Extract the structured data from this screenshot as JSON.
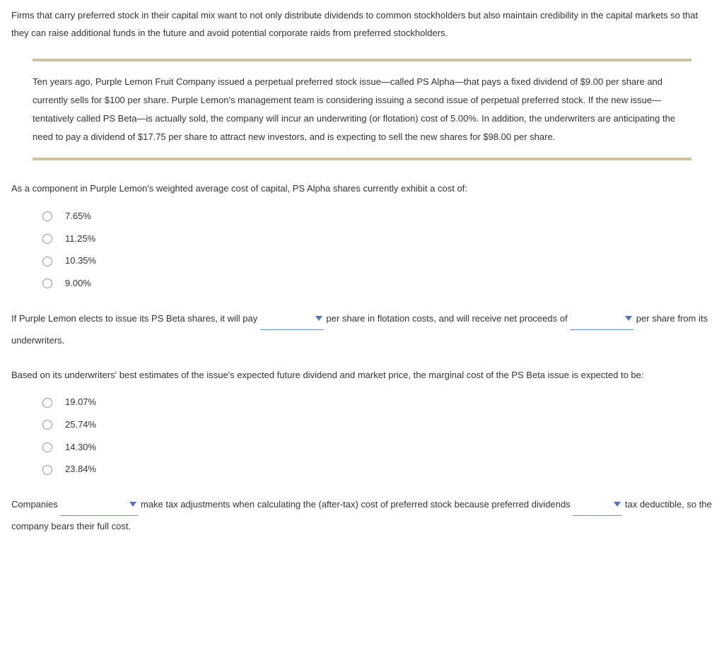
{
  "intro": "Firms that carry preferred stock in their capital mix want to not only distribute dividends to common stockholders but also maintain credibility in the capital markets so that they can raise additional funds in the future and avoid potential corporate raids from preferred stockholders.",
  "scenario": "Ten years ago, Purple Lemon Fruit Company issued a perpetual preferred stock issue—called PS Alpha—that pays a fixed dividend of $9.00 per share and currently sells for $100 per share. Purple Lemon's management team is considering issuing a second issue of perpetual preferred stock. If the new issue—tentatively called PS Beta—is actually sold, the company will incur an underwriting (or flotation) cost of 5.00%. In addition, the underwriters are anticipating the need to pay a dividend of $17.75 per share to attract new investors, and is expecting to sell the new shares for $98.00 per share.",
  "q1": {
    "prompt": "As a component in Purple Lemon's weighted average cost of capital, PS Alpha shares currently exhibit a cost of:",
    "options": [
      "7.65%",
      "11.25%",
      "10.35%",
      "9.00%"
    ]
  },
  "q2": {
    "part1": "If Purple Lemon elects to issue its PS Beta shares, it will pay ",
    "part2": " per share in flotation costs, and will receive net proceeds of ",
    "part3": " per share from its underwriters."
  },
  "q3": {
    "prompt": "Based on its underwriters' best estimates of the issue's expected future dividend and market price, the marginal cost of the PS Beta issue is expected to be:",
    "options": [
      "19.07%",
      "25.74%",
      "14.30%",
      "23.84%"
    ]
  },
  "q4": {
    "part1": "Companies ",
    "part2": " make tax adjustments when calculating the (after-tax) cost of preferred stock because preferred dividends ",
    "part3": " tax deductible, so the company bears their full cost."
  },
  "colors": {
    "hr": "#cdc3a1",
    "underline": "#6a8fd8",
    "caret": "#4a74c9",
    "text": "#333333",
    "bg": "#ffffff"
  }
}
